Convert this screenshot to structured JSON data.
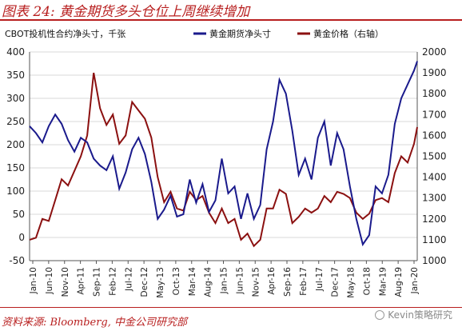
{
  "header": {
    "title": "图表 24: 黄金期货多头仓位上周继续增加"
  },
  "footer": {
    "source": "资料来源: Bloomberg, 中金公司研究部",
    "watermark": "Kevin策略研究"
  },
  "chart_data": {
    "type": "line",
    "left_axis_title": "CBOT投机性合约净头寸，千张",
    "ylim_left": [
      -50,
      400
    ],
    "ylim_right": [
      1000,
      2000
    ],
    "yticks_left": [
      -50,
      0,
      50,
      100,
      150,
      200,
      250,
      300,
      350,
      400
    ],
    "yticks_right": [
      1000,
      1100,
      1200,
      1300,
      1400,
      1500,
      1600,
      1700,
      1800,
      1900,
      2000
    ],
    "x_tick_labels": [
      "Jan-10",
      "Jun-10",
      "Nov-10",
      "Apr-11",
      "Sep-11",
      "Feb-12",
      "Jul-12",
      "Dec-12",
      "May-13",
      "Oct-13",
      "Mar-14",
      "Aug-14",
      "Jan-15",
      "Jun-15",
      "Nov-15",
      "Apr-16",
      "Sep-16",
      "Feb-17",
      "Jul-17",
      "Dec-17",
      "May-18",
      "Oct-18",
      "Mar-19",
      "Aug-19",
      "Jan-20"
    ],
    "legend_placement": "top",
    "colors": {
      "futures": "#1a1a8c",
      "price": "#8b1010",
      "accent": "#b81f1f"
    },
    "series": [
      {
        "name": "黄金期货净头寸",
        "axis": "left",
        "x": [
          "2010-01",
          "2010-03",
          "2010-05",
          "2010-07",
          "2010-09",
          "2010-11",
          "2011-01",
          "2011-03",
          "2011-05",
          "2011-07",
          "2011-09",
          "2011-11",
          "2012-01",
          "2012-03",
          "2012-05",
          "2012-07",
          "2012-09",
          "2012-11",
          "2013-01",
          "2013-03",
          "2013-05",
          "2013-07",
          "2013-09",
          "2013-11",
          "2014-01",
          "2014-03",
          "2014-05",
          "2014-07",
          "2014-09",
          "2014-11",
          "2015-01",
          "2015-03",
          "2015-05",
          "2015-07",
          "2015-09",
          "2015-11",
          "2016-01",
          "2016-03",
          "2016-05",
          "2016-07",
          "2016-09",
          "2016-11",
          "2017-01",
          "2017-03",
          "2017-05",
          "2017-07",
          "2017-09",
          "2017-11",
          "2018-01",
          "2018-03",
          "2018-05",
          "2018-07",
          "2018-09",
          "2018-11",
          "2019-01",
          "2019-03",
          "2019-05",
          "2019-07",
          "2019-09",
          "2019-11",
          "2020-01",
          "2020-02"
        ],
        "values": [
          240,
          225,
          205,
          240,
          265,
          245,
          210,
          185,
          215,
          205,
          170,
          155,
          145,
          175,
          105,
          140,
          190,
          215,
          180,
          120,
          40,
          60,
          90,
          45,
          50,
          125,
          75,
          115,
          55,
          80,
          170,
          95,
          110,
          40,
          95,
          40,
          70,
          190,
          250,
          340,
          310,
          230,
          135,
          170,
          125,
          215,
          250,
          155,
          225,
          190,
          110,
          40,
          -15,
          5,
          110,
          95,
          135,
          245,
          300,
          330,
          360,
          380
        ]
      },
      {
        "name": "黄金价格（右轴）",
        "axis": "right",
        "x": [
          "2010-01",
          "2010-03",
          "2010-05",
          "2010-07",
          "2010-09",
          "2010-11",
          "2011-01",
          "2011-03",
          "2011-05",
          "2011-07",
          "2011-09",
          "2011-11",
          "2012-01",
          "2012-03",
          "2012-05",
          "2012-07",
          "2012-09",
          "2012-11",
          "2013-01",
          "2013-03",
          "2013-05",
          "2013-07",
          "2013-09",
          "2013-11",
          "2014-01",
          "2014-03",
          "2014-05",
          "2014-07",
          "2014-09",
          "2014-11",
          "2015-01",
          "2015-03",
          "2015-05",
          "2015-07",
          "2015-09",
          "2015-11",
          "2016-01",
          "2016-03",
          "2016-05",
          "2016-07",
          "2016-09",
          "2016-11",
          "2017-01",
          "2017-03",
          "2017-05",
          "2017-07",
          "2017-09",
          "2017-11",
          "2018-01",
          "2018-03",
          "2018-05",
          "2018-07",
          "2018-09",
          "2018-11",
          "2019-01",
          "2019-03",
          "2019-05",
          "2019-07",
          "2019-09",
          "2019-11",
          "2020-01",
          "2020-02"
        ],
        "values": [
          1100,
          1110,
          1200,
          1190,
          1290,
          1390,
          1360,
          1430,
          1500,
          1600,
          1900,
          1730,
          1650,
          1700,
          1560,
          1600,
          1760,
          1720,
          1680,
          1590,
          1400,
          1280,
          1330,
          1250,
          1240,
          1330,
          1290,
          1310,
          1230,
          1180,
          1250,
          1180,
          1200,
          1100,
          1130,
          1070,
          1100,
          1250,
          1250,
          1340,
          1320,
          1180,
          1210,
          1250,
          1230,
          1250,
          1310,
          1280,
          1330,
          1320,
          1300,
          1230,
          1200,
          1225,
          1290,
          1300,
          1280,
          1420,
          1500,
          1470,
          1560,
          1640
        ]
      }
    ]
  }
}
